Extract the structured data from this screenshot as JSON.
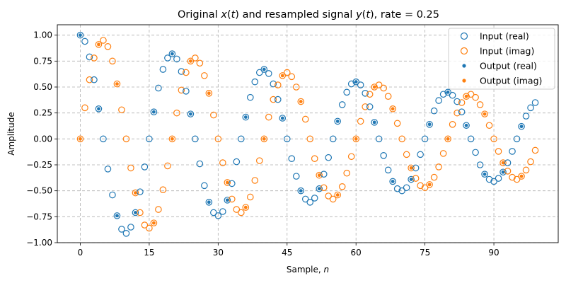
{
  "chart_data": {
    "type": "scatter",
    "title_parts": [
      "Original ",
      "x",
      "(",
      "t",
      ") and resampled signal ",
      "y",
      "(",
      "t",
      "), rate = 0.25"
    ],
    "xlabel_parts": [
      "Sample, ",
      "n"
    ],
    "ylabel": "Amplitude",
    "xlim": [
      -5,
      104
    ],
    "ylim": [
      -1.0,
      1.1
    ],
    "xticks": [
      0,
      15,
      30,
      45,
      60,
      75,
      90
    ],
    "yticks": [
      -1.0,
      -0.75,
      -0.5,
      -0.25,
      0.0,
      0.25,
      0.5,
      0.75,
      1.0
    ],
    "ytick_labels": [
      "−1.00",
      "−0.75",
      "−0.50",
      "−0.25",
      "0.00",
      "0.25",
      "0.50",
      "0.75",
      "1.00"
    ],
    "grid": true,
    "legend_position": "top-right",
    "colors": {
      "real": "#1f77b4",
      "imag": "#ff7f0e"
    },
    "legend": [
      {
        "label": "Input (real)",
        "marker": "hollow",
        "color": "#1f77b4"
      },
      {
        "label": "Input (imag)",
        "marker": "hollow",
        "color": "#ff7f0e"
      },
      {
        "label": "Output (real)",
        "marker": "dot",
        "color": "#1f77b4"
      },
      {
        "label": "Output (imag)",
        "marker": "dot",
        "color": "#ff7f0e"
      }
    ],
    "input_x": [
      0,
      1,
      2,
      3,
      4,
      5,
      6,
      7,
      8,
      9,
      10,
      11,
      12,
      13,
      14,
      15,
      16,
      17,
      18,
      19,
      20,
      21,
      22,
      23,
      24,
      25,
      26,
      27,
      28,
      29,
      30,
      31,
      32,
      33,
      34,
      35,
      36,
      37,
      38,
      39,
      40,
      41,
      42,
      43,
      44,
      45,
      46,
      47,
      48,
      49,
      50,
      51,
      52,
      53,
      54,
      55,
      56,
      57,
      58,
      59,
      60,
      61,
      62,
      63,
      64,
      65,
      66,
      67,
      68,
      69,
      70,
      71,
      72,
      73,
      74,
      75,
      76,
      77,
      78,
      79,
      80,
      81,
      82,
      83,
      84,
      85,
      86,
      87,
      88,
      89,
      90,
      91,
      92,
      93,
      94,
      95,
      96,
      97,
      98,
      99
    ],
    "input_real": [
      1.0,
      0.94,
      0.79,
      0.57,
      0.29,
      0.0,
      -0.29,
      -0.54,
      -0.74,
      -0.87,
      -0.91,
      -0.85,
      -0.71,
      -0.51,
      -0.27,
      0.0,
      0.26,
      0.49,
      0.67,
      0.78,
      0.82,
      0.77,
      0.65,
      0.46,
      0.24,
      0.0,
      -0.24,
      -0.45,
      -0.61,
      -0.71,
      -0.74,
      -0.7,
      -0.59,
      -0.43,
      -0.22,
      0.0,
      0.21,
      0.4,
      0.55,
      0.64,
      0.67,
      0.63,
      0.53,
      0.38,
      0.2,
      0.0,
      -0.19,
      -0.36,
      -0.5,
      -0.58,
      -0.61,
      -0.57,
      -0.48,
      -0.34,
      -0.18,
      0.0,
      0.17,
      0.33,
      0.45,
      0.53,
      0.55,
      0.52,
      0.44,
      0.31,
      0.16,
      0.0,
      -0.16,
      -0.3,
      -0.41,
      -0.48,
      -0.5,
      -0.47,
      -0.39,
      -0.28,
      -0.15,
      0.0,
      0.14,
      0.27,
      0.37,
      0.43,
      0.45,
      0.42,
      0.36,
      0.26,
      0.13,
      0.0,
      -0.13,
      -0.25,
      -0.34,
      -0.39,
      -0.41,
      -0.38,
      -0.32,
      -0.23,
      -0.12,
      0.0,
      0.12,
      0.22,
      0.3,
      0.35
    ],
    "input_imag": [
      0.0,
      0.3,
      0.57,
      0.78,
      0.91,
      0.95,
      0.89,
      0.75,
      0.53,
      0.28,
      0.0,
      -0.28,
      -0.52,
      -0.71,
      -0.83,
      -0.86,
      -0.81,
      -0.68,
      -0.49,
      -0.26,
      0.0,
      0.25,
      0.47,
      0.64,
      0.75,
      0.78,
      0.73,
      0.61,
      0.44,
      0.23,
      0.0,
      -0.23,
      -0.42,
      -0.58,
      -0.68,
      -0.71,
      -0.66,
      -0.56,
      -0.4,
      -0.21,
      0.0,
      0.21,
      0.38,
      0.52,
      0.61,
      0.64,
      0.6,
      0.5,
      0.36,
      0.19,
      0.0,
      -0.19,
      -0.35,
      -0.47,
      -0.55,
      -0.58,
      -0.54,
      -0.46,
      -0.33,
      -0.17,
      0.0,
      0.17,
      0.31,
      0.43,
      0.5,
      0.52,
      0.49,
      0.41,
      0.29,
      0.15,
      0.0,
      -0.15,
      -0.28,
      -0.38,
      -0.45,
      -0.47,
      -0.44,
      -0.37,
      -0.27,
      -0.14,
      0.0,
      0.14,
      0.25,
      0.35,
      0.41,
      0.43,
      0.4,
      0.33,
      0.24,
      0.13,
      0.0,
      -0.12,
      -0.23,
      -0.31,
      -0.37,
      -0.39,
      -0.36,
      -0.3,
      -0.22,
      -0.11
    ],
    "output_x": [
      0,
      4,
      8,
      12,
      16,
      20,
      24,
      28,
      32,
      36,
      40,
      44,
      48,
      52,
      56,
      60,
      64,
      68,
      72,
      76,
      80,
      84,
      88,
      92,
      96
    ],
    "output_real": [
      1.0,
      0.29,
      -0.74,
      -0.71,
      0.26,
      0.82,
      0.24,
      -0.61,
      -0.59,
      0.21,
      0.67,
      0.2,
      -0.5,
      -0.48,
      0.17,
      0.55,
      0.16,
      -0.41,
      -0.39,
      0.14,
      0.45,
      0.13,
      -0.34,
      -0.32,
      0.12
    ],
    "output_imag": [
      0.0,
      0.91,
      0.53,
      -0.52,
      -0.81,
      0.0,
      0.75,
      0.44,
      -0.42,
      -0.66,
      0.0,
      0.61,
      0.36,
      -0.35,
      -0.54,
      0.0,
      0.5,
      0.29,
      -0.28,
      -0.44,
      0.0,
      0.41,
      0.24,
      -0.23,
      -0.36
    ]
  }
}
